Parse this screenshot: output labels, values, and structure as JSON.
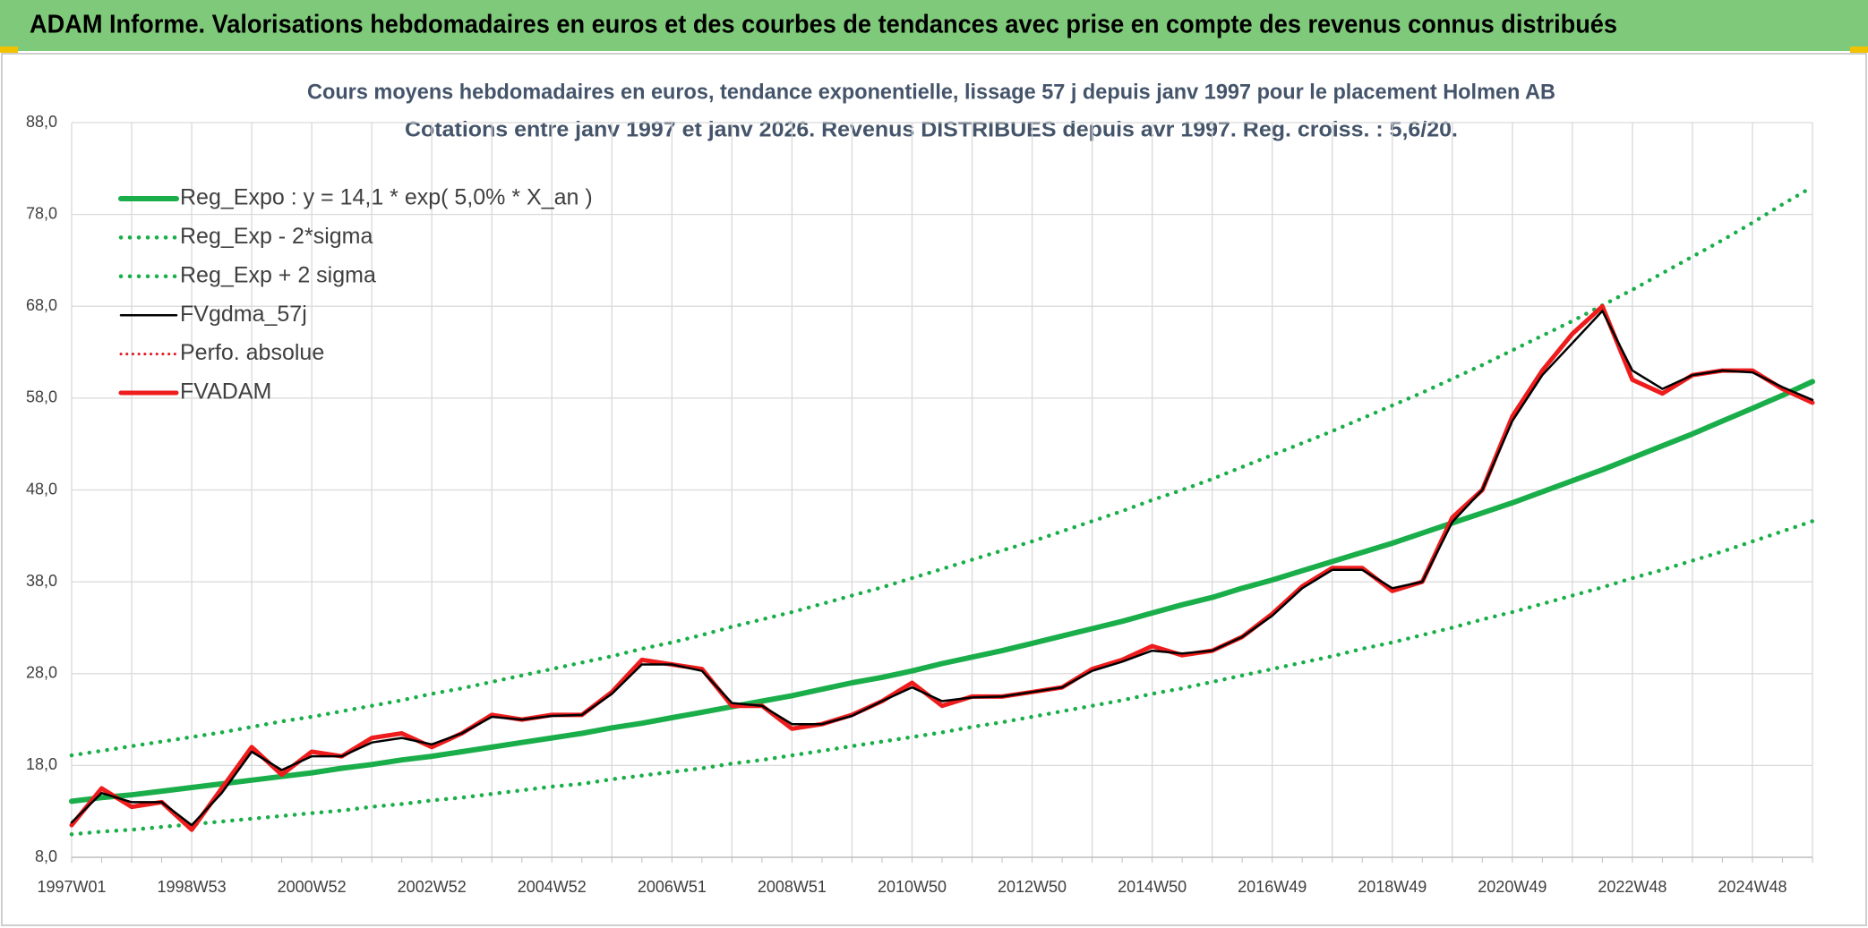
{
  "header": {
    "title": "ADAM Informe. Valorisations hebdomadaires en euros et des courbes de tendances avec prise en compte des revenus connus distribués"
  },
  "chart_data": {
    "type": "line",
    "title": "Cours moyens hebdomadaires en euros, tendance exponentielle, lissage 57 j depuis janv 1997 pour le placement Holmen AB",
    "subtitle": "Cotations entre janv 1997 et janv 2026. Revenus DISTRIBUES depuis avr 1997. Reg. croiss. : 5,6/20.",
    "categories": [
      "1997W01",
      null,
      null,
      null,
      "1998W53",
      null,
      null,
      null,
      "2000W52",
      null,
      null,
      null,
      "2002W52",
      null,
      null,
      null,
      "2004W52",
      null,
      null,
      null,
      "2006W51",
      null,
      null,
      null,
      "2008W51",
      null,
      null,
      null,
      "2010W50",
      null,
      null,
      null,
      "2012W50",
      null,
      null,
      null,
      "2014W50",
      null,
      null,
      null,
      "2016W49",
      null,
      null,
      null,
      "2018W49",
      null,
      null,
      null,
      "2020W49",
      null,
      null,
      null,
      "2022W48",
      null,
      null,
      null,
      "2024W48",
      null,
      null
    ],
    "ylim": [
      8,
      88
    ],
    "yticks": [
      {
        "value": 8,
        "label": "8,0"
      },
      {
        "value": 18,
        "label": "18,0"
      },
      {
        "value": 28,
        "label": "28,0"
      },
      {
        "value": 38,
        "label": "38,0"
      },
      {
        "value": 48,
        "label": "48,0"
      },
      {
        "value": 58,
        "label": "58,0"
      },
      {
        "value": 68,
        "label": "68,0"
      },
      {
        "value": 78,
        "label": "78,0"
      },
      {
        "value": 88,
        "label": "88,0"
      }
    ],
    "grid": true,
    "legend": "top-left",
    "series": [
      {
        "name": "Reg_Expo : y = 14,1 * exp( 5,0% *  X_an )",
        "color": "#1aae4a",
        "style": "solid",
        "width": 6,
        "values": [
          14.1,
          14.5,
          14.8,
          15.2,
          15.6,
          16.0,
          16.4,
          16.8,
          17.2,
          17.7,
          18.1,
          18.6,
          19.0,
          19.5,
          20.0,
          20.5,
          21.0,
          21.5,
          22.1,
          22.6,
          23.2,
          23.8,
          24.4,
          25.0,
          25.6,
          26.3,
          27.0,
          27.6,
          28.3,
          29.1,
          29.8,
          30.5,
          31.3,
          32.1,
          32.9,
          33.7,
          34.6,
          35.5,
          36.3,
          37.3,
          38.2,
          39.2,
          40.2,
          41.2,
          42.2,
          43.3,
          44.4,
          45.5,
          46.6,
          47.8,
          49.0,
          50.2,
          51.5,
          52.8,
          54.1,
          55.5,
          56.9,
          58.3,
          59.8
        ]
      },
      {
        "name": "Reg_Exp - 2*sigma",
        "color": "#1aae4a",
        "style": "dotted",
        "width": 4.5,
        "values": [
          10.5,
          10.8,
          11.0,
          11.3,
          11.6,
          11.9,
          12.2,
          12.5,
          12.8,
          13.1,
          13.5,
          13.8,
          14.2,
          14.5,
          14.9,
          15.3,
          15.7,
          16.0,
          16.5,
          16.9,
          17.3,
          17.7,
          18.2,
          18.6,
          19.1,
          19.6,
          20.1,
          20.6,
          21.1,
          21.6,
          22.2,
          22.7,
          23.3,
          23.9,
          24.5,
          25.1,
          25.8,
          26.4,
          27.1,
          27.8,
          28.5,
          29.2,
          29.9,
          30.7,
          31.4,
          32.2,
          33.0,
          33.9,
          34.7,
          35.6,
          36.5,
          37.4,
          38.4,
          39.3,
          40.3,
          41.3,
          42.4,
          43.5,
          44.6
        ]
      },
      {
        "name": "Reg_Exp + 2 sigma",
        "color": "#1aae4a",
        "style": "dotted",
        "width": 4.5,
        "values": [
          19.1,
          19.6,
          20.1,
          20.6,
          21.1,
          21.6,
          22.2,
          22.8,
          23.3,
          23.9,
          24.5,
          25.1,
          25.8,
          26.4,
          27.1,
          27.8,
          28.5,
          29.2,
          29.9,
          30.7,
          31.4,
          32.2,
          33.1,
          33.9,
          34.7,
          35.6,
          36.5,
          37.4,
          38.4,
          39.4,
          40.4,
          41.4,
          42.4,
          43.5,
          44.6,
          45.7,
          46.9,
          48.0,
          49.2,
          50.5,
          51.8,
          53.1,
          54.4,
          55.8,
          57.2,
          58.6,
          60.1,
          61.6,
          63.2,
          64.8,
          66.4,
          68.1,
          69.8,
          71.6,
          73.4,
          75.2,
          77.1,
          79.1,
          81.0
        ]
      },
      {
        "name": "FVgdma_57j",
        "color": "#000000",
        "style": "solid",
        "width": 2.5,
        "values": [
          11.8,
          15.0,
          14.0,
          14.0,
          11.5,
          15.0,
          19.5,
          17.5,
          19.0,
          19.0,
          20.5,
          21.0,
          20.3,
          21.5,
          23.3,
          23.0,
          23.4,
          23.5,
          25.8,
          29.0,
          29.0,
          28.3,
          24.8,
          24.5,
          22.5,
          22.5,
          23.4,
          25.0,
          26.5,
          25.0,
          25.4,
          25.5,
          26.0,
          26.5,
          28.3,
          29.3,
          30.5,
          30.2,
          30.5,
          32.0,
          34.3,
          37.3,
          39.3,
          39.3,
          37.3,
          38.0,
          44.5,
          48.0,
          55.5,
          60.5,
          64.0,
          67.5,
          61.0,
          59.0,
          60.5,
          61.0,
          60.8,
          59.2,
          57.8
        ]
      },
      {
        "name": "Perfo. absolue",
        "color": "#e3131b",
        "style": "dotted",
        "width": 3
      },
      {
        "name": "FVADAM",
        "color": "#ee1c1c",
        "style": "solid",
        "width": 5,
        "values": [
          11.5,
          15.5,
          13.5,
          14.0,
          11.0,
          15.5,
          20.0,
          17.0,
          19.5,
          19.0,
          21.0,
          21.5,
          20.0,
          21.5,
          23.5,
          23.0,
          23.5,
          23.5,
          26.0,
          29.5,
          29.0,
          28.5,
          24.5,
          24.5,
          22.0,
          22.5,
          23.5,
          25.0,
          27.0,
          24.5,
          25.5,
          25.5,
          26.0,
          26.5,
          28.5,
          29.5,
          31.0,
          30.0,
          30.5,
          32.0,
          34.5,
          37.5,
          39.5,
          39.5,
          37.0,
          38.0,
          45.0,
          48.0,
          56.0,
          61.0,
          65.0,
          68.0,
          60.0,
          58.5,
          60.5,
          61.0,
          61.0,
          59.0,
          57.5
        ]
      }
    ]
  }
}
